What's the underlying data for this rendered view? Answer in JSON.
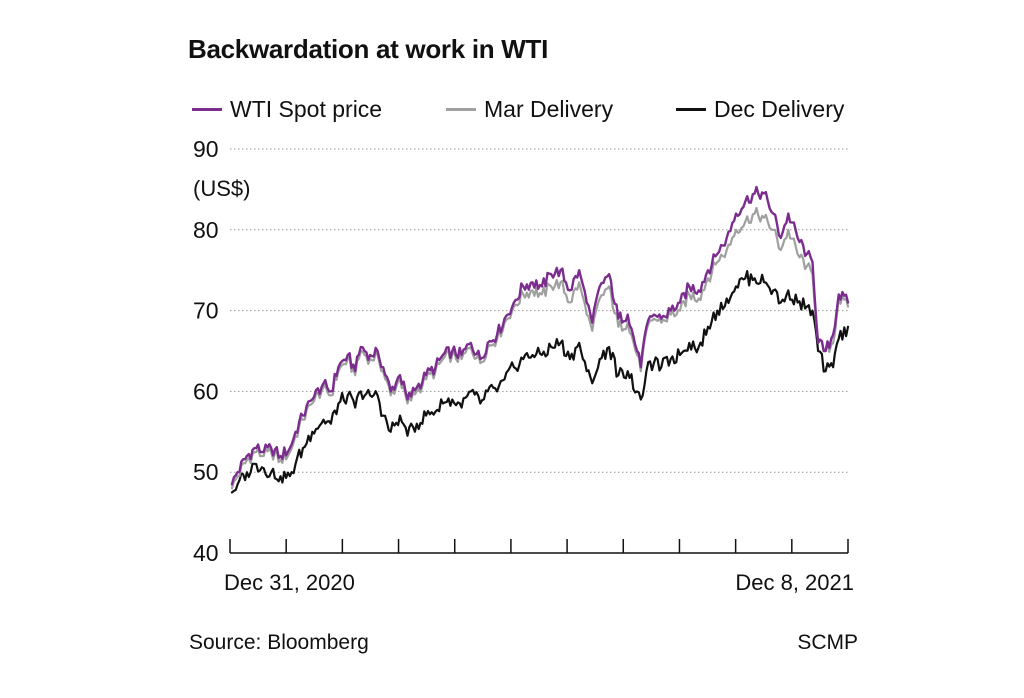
{
  "chart_data": {
    "type": "line",
    "title": "Backwardation at work in WTI",
    "ylabel": "(US$)",
    "xlabel": "",
    "ylim": [
      40,
      90
    ],
    "yticks": [
      40,
      50,
      60,
      70,
      80,
      90
    ],
    "grid": true,
    "x_start_label": "Dec 31, 2020",
    "x_end_label": "Dec 8, 2021",
    "num_x_ticks": 12,
    "n_points": 235,
    "legend_position": "top",
    "series": [
      {
        "name": "WTI Spot price",
        "color": "#7b2d8e",
        "anchors": [
          [
            0,
            48.5
          ],
          [
            3,
            50
          ],
          [
            8,
            52
          ],
          [
            13,
            53
          ],
          [
            17,
            52.5
          ],
          [
            21,
            53
          ],
          [
            26,
            52
          ],
          [
            31,
            53
          ],
          [
            34,
            55
          ],
          [
            38,
            57
          ],
          [
            43,
            59
          ],
          [
            49,
            61
          ],
          [
            53,
            60
          ],
          [
            57,
            63
          ],
          [
            62,
            64.5
          ],
          [
            66,
            62.5
          ],
          [
            69,
            65.5
          ],
          [
            74,
            64.5
          ],
          [
            78,
            65
          ],
          [
            81,
            63
          ],
          [
            85,
            60
          ],
          [
            90,
            62
          ],
          [
            94,
            59
          ],
          [
            99,
            60.5
          ],
          [
            104,
            62
          ],
          [
            109,
            63
          ],
          [
            113,
            64.5
          ],
          [
            118,
            65
          ],
          [
            123,
            64.5
          ],
          [
            128,
            66
          ],
          [
            133,
            64
          ],
          [
            137,
            66
          ],
          [
            142,
            67
          ],
          [
            146,
            69
          ],
          [
            151,
            71
          ],
          [
            156,
            73
          ],
          [
            161,
            73.5
          ],
          [
            166,
            73
          ],
          [
            171,
            74.5
          ],
          [
            176,
            75
          ],
          [
            181,
            72.5
          ],
          [
            186,
            75
          ],
          [
            190,
            71
          ],
          [
            193,
            68.5
          ],
          [
            197,
            73
          ],
          [
            202,
            74.5
          ],
          [
            207,
            69
          ],
          [
            212,
            69.5
          ],
          [
            217,
            65
          ],
          [
            219,
            63
          ],
          [
            222,
            68
          ],
          [
            226,
            69.5
          ],
          [
            230,
            69
          ],
          [
            235,
            70
          ],
          [
            240,
            71
          ],
          [
            245,
            73
          ],
          [
            250,
            72.5
          ],
          [
            255,
            75
          ],
          [
            260,
            77
          ],
          [
            265,
            79
          ],
          [
            270,
            82
          ],
          [
            275,
            83.5
          ],
          [
            280,
            84.5
          ],
          [
            285,
            84.5
          ],
          [
            290,
            82
          ],
          [
            294,
            79
          ],
          [
            298,
            82
          ],
          [
            303,
            79
          ],
          [
            308,
            77
          ],
          [
            311,
            76
          ],
          [
            314,
            66
          ],
          [
            318,
            65
          ],
          [
            322,
            67
          ],
          [
            325,
            72
          ],
          [
            330,
            71
          ]
        ]
      },
      {
        "name": "Mar Delivery",
        "color": "#a0a0a0",
        "anchors": [
          [
            0,
            48
          ],
          [
            3,
            49.5
          ],
          [
            8,
            51.5
          ],
          [
            13,
            52.5
          ],
          [
            17,
            52
          ],
          [
            21,
            52.5
          ],
          [
            26,
            51.5
          ],
          [
            31,
            52.5
          ],
          [
            34,
            54.5
          ],
          [
            38,
            56.5
          ],
          [
            43,
            58.5
          ],
          [
            49,
            60.5
          ],
          [
            53,
            59.5
          ],
          [
            57,
            62.5
          ],
          [
            62,
            64
          ],
          [
            66,
            62
          ],
          [
            69,
            65
          ],
          [
            74,
            64
          ],
          [
            78,
            64.5
          ],
          [
            81,
            62.5
          ],
          [
            85,
            59.5
          ],
          [
            90,
            61.5
          ],
          [
            94,
            58.5
          ],
          [
            99,
            60
          ],
          [
            104,
            61.5
          ],
          [
            109,
            62.5
          ],
          [
            113,
            64
          ],
          [
            118,
            64.5
          ],
          [
            123,
            64
          ],
          [
            128,
            65.5
          ],
          [
            133,
            63.5
          ],
          [
            137,
            65.5
          ],
          [
            142,
            66.5
          ],
          [
            146,
            68.5
          ],
          [
            151,
            70.5
          ],
          [
            156,
            72
          ],
          [
            161,
            72.5
          ],
          [
            166,
            72
          ],
          [
            171,
            73
          ],
          [
            176,
            73.5
          ],
          [
            181,
            71
          ],
          [
            186,
            73.5
          ],
          [
            190,
            69.5
          ],
          [
            193,
            67.5
          ],
          [
            197,
            71.5
          ],
          [
            202,
            73
          ],
          [
            207,
            68
          ],
          [
            212,
            68.5
          ],
          [
            217,
            64.5
          ],
          [
            219,
            62.5
          ],
          [
            222,
            67.5
          ],
          [
            226,
            69
          ],
          [
            230,
            68.5
          ],
          [
            235,
            69.5
          ],
          [
            240,
            70
          ],
          [
            245,
            72
          ],
          [
            250,
            71.5
          ],
          [
            255,
            74
          ],
          [
            260,
            76
          ],
          [
            265,
            77.5
          ],
          [
            270,
            80
          ],
          [
            275,
            81
          ],
          [
            280,
            82
          ],
          [
            285,
            81.5
          ],
          [
            290,
            80
          ],
          [
            294,
            77.5
          ],
          [
            298,
            80
          ],
          [
            303,
            77
          ],
          [
            308,
            75.5
          ],
          [
            311,
            74.5
          ],
          [
            314,
            66
          ],
          [
            318,
            65
          ],
          [
            322,
            66
          ],
          [
            325,
            71.5
          ],
          [
            330,
            70.5
          ]
        ]
      },
      {
        "name": "Dec Delivery",
        "color": "#111111",
        "anchors": [
          [
            0,
            47.5
          ],
          [
            3,
            48.5
          ],
          [
            8,
            50
          ],
          [
            13,
            51
          ],
          [
            17,
            50.5
          ],
          [
            21,
            50
          ],
          [
            26,
            49.5
          ],
          [
            31,
            49.5
          ],
          [
            34,
            51
          ],
          [
            38,
            53
          ],
          [
            43,
            55
          ],
          [
            49,
            56.5
          ],
          [
            53,
            56
          ],
          [
            57,
            58.5
          ],
          [
            62,
            59.5
          ],
          [
            66,
            58
          ],
          [
            69,
            60
          ],
          [
            74,
            59.5
          ],
          [
            78,
            59.5
          ],
          [
            81,
            57
          ],
          [
            85,
            55
          ],
          [
            90,
            57
          ],
          [
            94,
            54.5
          ],
          [
            99,
            56
          ],
          [
            104,
            57
          ],
          [
            109,
            57.5
          ],
          [
            113,
            58.5
          ],
          [
            118,
            59
          ],
          [
            123,
            58
          ],
          [
            128,
            60
          ],
          [
            133,
            58.5
          ],
          [
            137,
            60
          ],
          [
            142,
            60
          ],
          [
            146,
            61.5
          ],
          [
            151,
            63
          ],
          [
            156,
            64
          ],
          [
            161,
            64.5
          ],
          [
            166,
            64.5
          ],
          [
            171,
            65.5
          ],
          [
            176,
            66
          ],
          [
            181,
            64
          ],
          [
            186,
            66
          ],
          [
            190,
            62.5
          ],
          [
            193,
            61
          ],
          [
            197,
            64
          ],
          [
            202,
            65.5
          ],
          [
            207,
            62
          ],
          [
            212,
            62.5
          ],
          [
            217,
            60
          ],
          [
            219,
            59
          ],
          [
            222,
            62.5
          ],
          [
            226,
            63.5
          ],
          [
            230,
            63
          ],
          [
            235,
            64
          ],
          [
            240,
            64.5
          ],
          [
            245,
            66
          ],
          [
            250,
            65.5
          ],
          [
            255,
            68
          ],
          [
            260,
            70
          ],
          [
            265,
            71.5
          ],
          [
            270,
            73
          ],
          [
            275,
            74
          ],
          [
            280,
            74
          ],
          [
            285,
            73.5
          ],
          [
            290,
            72.5
          ],
          [
            294,
            71
          ],
          [
            298,
            72.5
          ],
          [
            303,
            71
          ],
          [
            308,
            70.5
          ],
          [
            311,
            70
          ],
          [
            314,
            65
          ],
          [
            318,
            62.5
          ],
          [
            322,
            63
          ],
          [
            325,
            66.5
          ],
          [
            330,
            68
          ]
        ]
      }
    ]
  },
  "source": "Source: Bloomberg",
  "credit": "SCMP"
}
